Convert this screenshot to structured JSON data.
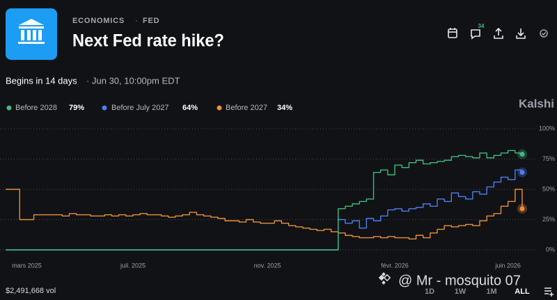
{
  "header": {
    "category": "ECONOMICS",
    "subcategory": "FED",
    "title": "Next Fed rate hike?",
    "comment_count": "34"
  },
  "status": {
    "begins": "Begins in 14 days",
    "time": "Jun 30, 10:00pm EDT"
  },
  "brand": "Kalshi",
  "chart_data": {
    "type": "line",
    "categories": [
      null,
      null,
      null,
      "mars 2025",
      null,
      null,
      null,
      null,
      null,
      null,
      null,
      null,
      null,
      null,
      null,
      null,
      null,
      null,
      "juil. 2025",
      null,
      null,
      null,
      null,
      null,
      null,
      null,
      null,
      null,
      null,
      null,
      null,
      null,
      null,
      null,
      null,
      null,
      null,
      "nov. 2025",
      null,
      null,
      null,
      null,
      null,
      null,
      null,
      null,
      null,
      null,
      null,
      null,
      null,
      null,
      null,
      null,
      null,
      "févr. 2026",
      null,
      null,
      null,
      null,
      null,
      null,
      null,
      null,
      null,
      null,
      null,
      null,
      null,
      null,
      null,
      "juin 2026",
      null,
      null
    ],
    "ylim": [
      0,
      100
    ],
    "yticks": [
      {
        "value": 0,
        "label": "0%"
      },
      {
        "value": 25,
        "label": "25%"
      },
      {
        "value": 50,
        "label": "50%"
      },
      {
        "value": 75,
        "label": "75%"
      },
      {
        "value": 100,
        "label": "100%"
      }
    ],
    "grid": true,
    "series": [
      {
        "name": "Before 2028",
        "color": "#3dbd7d",
        "current_label": "79%",
        "values": [
          0,
          0,
          0,
          0,
          0,
          0,
          0,
          0,
          0,
          0,
          0,
          0,
          0,
          0,
          0,
          0,
          0,
          0,
          0,
          0,
          0,
          0,
          0,
          0,
          0,
          0,
          0,
          0,
          0,
          0,
          0,
          0,
          0,
          0,
          0,
          0,
          0,
          0,
          0,
          0,
          0,
          0,
          0,
          0,
          0,
          0,
          0,
          34,
          36,
          38,
          40,
          42,
          64,
          66,
          62,
          70,
          68,
          72,
          74,
          71,
          72,
          73,
          74,
          77,
          78,
          77,
          76,
          80,
          76,
          78,
          80,
          82,
          80,
          79
        ]
      },
      {
        "name": "Before July 2027",
        "color": "#4b7ff0",
        "current_label": "64%",
        "values": [
          0,
          0,
          0,
          0,
          0,
          0,
          0,
          0,
          0,
          0,
          0,
          0,
          0,
          0,
          0,
          0,
          0,
          0,
          0,
          0,
          0,
          0,
          0,
          0,
          0,
          0,
          0,
          0,
          0,
          0,
          0,
          0,
          0,
          0,
          0,
          0,
          0,
          0,
          0,
          0,
          0,
          0,
          0,
          0,
          0,
          0,
          0,
          25,
          22,
          24,
          18,
          26,
          24,
          28,
          33,
          34,
          32,
          34,
          35,
          38,
          36,
          42,
          40,
          47,
          44,
          42,
          48,
          46,
          52,
          56,
          60,
          58,
          66,
          64
        ]
      },
      {
        "name": "Before 2027",
        "color": "#ec8f36",
        "current_label": "34%",
        "values": [
          50,
          50,
          25,
          25,
          29,
          29,
          29,
          29,
          28,
          30,
          29,
          29,
          28,
          28,
          29,
          28,
          29,
          28,
          29,
          30,
          29,
          29,
          28,
          27,
          28,
          29,
          31,
          29,
          28,
          27,
          26,
          24,
          24,
          23,
          25,
          23,
          22,
          22,
          24,
          22,
          20,
          19,
          18,
          17,
          16,
          17,
          15,
          14,
          12,
          11,
          10,
          10,
          11,
          10,
          11,
          10,
          10,
          9,
          12,
          10,
          14,
          17,
          20,
          19,
          20,
          21,
          20,
          24,
          28,
          30,
          36,
          40,
          50,
          34
        ]
      }
    ]
  },
  "volume": "$2,491,668 vol",
  "ranges": [
    "1D",
    "1W",
    "1M",
    "ALL"
  ],
  "watermark": "@ Mr - mosquito 07"
}
